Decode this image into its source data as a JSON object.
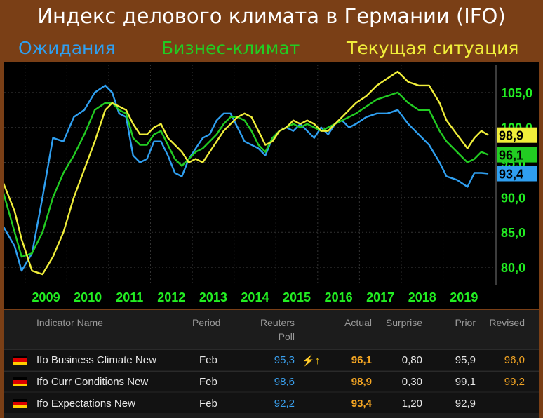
{
  "header": {
    "title": "Индекс делового климата в Германии (IFO)",
    "legend": [
      {
        "label": "Ожидания",
        "color": "#2f9ff0"
      },
      {
        "label": "Бизнес-климат",
        "color": "#22cc22"
      },
      {
        "label": "Текущая ситуация",
        "color": "#f0ee3a"
      }
    ]
  },
  "colors": {
    "expectations": "#2f9ff0",
    "business": "#22cc22",
    "current": "#f0ee3a",
    "axis_text": "#22ee22",
    "year_text": "#22ee22"
  },
  "chart_data": {
    "type": "line",
    "x_tick_labels": [
      "2009",
      "2010",
      "2011",
      "2012",
      "2013",
      "2014",
      "2015",
      "2016",
      "2017",
      "2018",
      "2019"
    ],
    "y_tick_labels": [
      "105,0",
      "100,0",
      "95,0",
      "90,0",
      "85,0",
      "80,0"
    ],
    "y_ticks": [
      105,
      100,
      95,
      90,
      85,
      80
    ],
    "ylim": [
      77.5,
      109
    ],
    "last_value_labels": [
      {
        "series": "Текущая ситуация",
        "text": "98,9",
        "value": 98.9
      },
      {
        "series": "Бизнес-климат",
        "text": "96,1",
        "value": 96.1
      },
      {
        "series": "Ожидания",
        "text": "93,4",
        "value": 93.4
      }
    ],
    "series": [
      {
        "name": "Ожидания",
        "color": "#2f9ff0",
        "points": [
          [
            "2008-06",
            86.5
          ],
          [
            "2008-10",
            83.0
          ],
          [
            "2008-12",
            79.5
          ],
          [
            "2009-03",
            82.0
          ],
          [
            "2009-06",
            90.0
          ],
          [
            "2009-09",
            98.5
          ],
          [
            "2009-12",
            98.0
          ],
          [
            "2010-03",
            101.5
          ],
          [
            "2010-06",
            102.5
          ],
          [
            "2010-09",
            105.0
          ],
          [
            "2010-12",
            106.0
          ],
          [
            "2011-02",
            105.0
          ],
          [
            "2011-04",
            102.0
          ],
          [
            "2011-06",
            101.5
          ],
          [
            "2011-08",
            96.0
          ],
          [
            "2011-10",
            95.0
          ],
          [
            "2011-12",
            95.5
          ],
          [
            "2012-02",
            98.0
          ],
          [
            "2012-04",
            98.0
          ],
          [
            "2012-06",
            96.0
          ],
          [
            "2012-08",
            93.5
          ],
          [
            "2012-10",
            93.0
          ],
          [
            "2012-12",
            95.5
          ],
          [
            "2013-02",
            97.0
          ],
          [
            "2013-04",
            98.5
          ],
          [
            "2013-06",
            99.0
          ],
          [
            "2013-08",
            101.0
          ],
          [
            "2013-10",
            102.0
          ],
          [
            "2013-12",
            102.0
          ],
          [
            "2014-02",
            100.0
          ],
          [
            "2014-04",
            98.0
          ],
          [
            "2014-06",
            97.5
          ],
          [
            "2014-08",
            97.0
          ],
          [
            "2014-10",
            96.0
          ],
          [
            "2014-12",
            98.5
          ],
          [
            "2015-02",
            99.5
          ],
          [
            "2015-04",
            100.0
          ],
          [
            "2015-06",
            99.5
          ],
          [
            "2015-08",
            100.5
          ],
          [
            "2015-10",
            99.5
          ],
          [
            "2015-12",
            98.5
          ],
          [
            "2016-02",
            100.0
          ],
          [
            "2016-04",
            99.0
          ],
          [
            "2016-06",
            100.5
          ],
          [
            "2016-08",
            101.0
          ],
          [
            "2016-10",
            100.0
          ],
          [
            "2016-12",
            100.5
          ],
          [
            "2017-03",
            101.5
          ],
          [
            "2017-06",
            102.0
          ],
          [
            "2017-09",
            102.0
          ],
          [
            "2017-12",
            102.5
          ],
          [
            "2018-03",
            100.5
          ],
          [
            "2018-06",
            99.0
          ],
          [
            "2018-09",
            97.5
          ],
          [
            "2018-12",
            95.0
          ],
          [
            "2019-02",
            93.0
          ],
          [
            "2019-05",
            92.5
          ],
          [
            "2019-08",
            91.5
          ],
          [
            "2019-10",
            93.5
          ],
          [
            "2019-12",
            93.5
          ],
          [
            "2020-02",
            93.4
          ]
        ]
      },
      {
        "name": "Бизнес-климат",
        "color": "#22cc22",
        "points": [
          [
            "2008-06",
            92.0
          ],
          [
            "2008-10",
            85.0
          ],
          [
            "2008-12",
            81.5
          ],
          [
            "2009-03",
            82.0
          ],
          [
            "2009-06",
            85.0
          ],
          [
            "2009-09",
            90.0
          ],
          [
            "2009-12",
            93.5
          ],
          [
            "2010-03",
            96.0
          ],
          [
            "2010-06",
            99.0
          ],
          [
            "2010-09",
            102.5
          ],
          [
            "2010-12",
            103.5
          ],
          [
            "2011-02",
            103.5
          ],
          [
            "2011-04",
            102.5
          ],
          [
            "2011-06",
            102.0
          ],
          [
            "2011-08",
            98.5
          ],
          [
            "2011-10",
            97.5
          ],
          [
            "2011-12",
            97.5
          ],
          [
            "2012-02",
            99.0
          ],
          [
            "2012-04",
            99.5
          ],
          [
            "2012-06",
            97.5
          ],
          [
            "2012-08",
            95.5
          ],
          [
            "2012-10",
            94.5
          ],
          [
            "2012-12",
            95.5
          ],
          [
            "2013-02",
            96.5
          ],
          [
            "2013-04",
            97.0
          ],
          [
            "2013-06",
            98.0
          ],
          [
            "2013-08",
            99.0
          ],
          [
            "2013-10",
            100.5
          ],
          [
            "2013-12",
            101.5
          ],
          [
            "2014-02",
            101.5
          ],
          [
            "2014-04",
            101.0
          ],
          [
            "2014-06",
            99.5
          ],
          [
            "2014-08",
            97.5
          ],
          [
            "2014-10",
            96.5
          ],
          [
            "2014-12",
            98.5
          ],
          [
            "2015-02",
            99.5
          ],
          [
            "2015-04",
            100.0
          ],
          [
            "2015-06",
            100.5
          ],
          [
            "2015-08",
            100.0
          ],
          [
            "2015-10",
            100.5
          ],
          [
            "2015-12",
            100.0
          ],
          [
            "2016-02",
            99.5
          ],
          [
            "2016-04",
            100.0
          ],
          [
            "2016-06",
            100.5
          ],
          [
            "2016-08",
            101.0
          ],
          [
            "2016-10",
            101.5
          ],
          [
            "2016-12",
            102.0
          ],
          [
            "2017-03",
            103.0
          ],
          [
            "2017-06",
            104.0
          ],
          [
            "2017-09",
            104.5
          ],
          [
            "2017-12",
            105.0
          ],
          [
            "2018-03",
            103.5
          ],
          [
            "2018-06",
            102.5
          ],
          [
            "2018-09",
            102.5
          ],
          [
            "2018-12",
            99.5
          ],
          [
            "2019-02",
            98.0
          ],
          [
            "2019-05",
            96.5
          ],
          [
            "2019-08",
            95.0
          ],
          [
            "2019-10",
            95.5
          ],
          [
            "2019-12",
            96.5
          ],
          [
            "2020-02",
            96.1
          ]
        ]
      },
      {
        "name": "Текущая ситуация",
        "color": "#f0ee3a",
        "points": [
          [
            "2008-06",
            93.0
          ],
          [
            "2008-10",
            88.0
          ],
          [
            "2008-12",
            84.0
          ],
          [
            "2009-03",
            79.5
          ],
          [
            "2009-06",
            79.0
          ],
          [
            "2009-09",
            81.5
          ],
          [
            "2009-12",
            85.0
          ],
          [
            "2010-03",
            90.0
          ],
          [
            "2010-06",
            94.0
          ],
          [
            "2010-09",
            98.0
          ],
          [
            "2010-12",
            102.5
          ],
          [
            "2011-02",
            103.5
          ],
          [
            "2011-04",
            103.0
          ],
          [
            "2011-06",
            102.5
          ],
          [
            "2011-08",
            100.5
          ],
          [
            "2011-10",
            99.0
          ],
          [
            "2011-12",
            99.0
          ],
          [
            "2012-02",
            100.0
          ],
          [
            "2012-04",
            100.5
          ],
          [
            "2012-06",
            98.5
          ],
          [
            "2012-08",
            97.5
          ],
          [
            "2012-10",
            96.5
          ],
          [
            "2012-12",
            95.0
          ],
          [
            "2013-02",
            95.5
          ],
          [
            "2013-04",
            95.0
          ],
          [
            "2013-06",
            96.5
          ],
          [
            "2013-08",
            98.0
          ],
          [
            "2013-10",
            99.5
          ],
          [
            "2013-12",
            100.5
          ],
          [
            "2014-02",
            101.5
          ],
          [
            "2014-04",
            102.0
          ],
          [
            "2014-06",
            101.5
          ],
          [
            "2014-08",
            99.5
          ],
          [
            "2014-10",
            97.5
          ],
          [
            "2014-12",
            98.0
          ],
          [
            "2015-02",
            99.5
          ],
          [
            "2015-04",
            100.0
          ],
          [
            "2015-06",
            101.0
          ],
          [
            "2015-08",
            100.5
          ],
          [
            "2015-10",
            101.0
          ],
          [
            "2015-12",
            100.5
          ],
          [
            "2016-02",
            99.5
          ],
          [
            "2016-04",
            99.5
          ],
          [
            "2016-06",
            100.5
          ],
          [
            "2016-08",
            101.5
          ],
          [
            "2016-10",
            102.5
          ],
          [
            "2016-12",
            103.5
          ],
          [
            "2017-03",
            104.5
          ],
          [
            "2017-06",
            106.0
          ],
          [
            "2017-09",
            107.0
          ],
          [
            "2017-12",
            108.0
          ],
          [
            "2018-03",
            106.5
          ],
          [
            "2018-06",
            106.0
          ],
          [
            "2018-09",
            106.0
          ],
          [
            "2018-12",
            103.5
          ],
          [
            "2019-02",
            101.0
          ],
          [
            "2019-05",
            99.0
          ],
          [
            "2019-08",
            97.0
          ],
          [
            "2019-10",
            98.5
          ],
          [
            "2019-12",
            99.5
          ],
          [
            "2020-02",
            98.9
          ]
        ]
      }
    ]
  },
  "table": {
    "headers": {
      "indicator": "Indicator Name",
      "period": "Period",
      "poll": "Reuters Poll",
      "actual": "Actual",
      "surprise": "Surprise",
      "prior": "Prior",
      "revised": "Revised"
    },
    "rows": [
      {
        "flag": "germany-flag",
        "indicator": "Ifo Business Climate New",
        "period": "Feb",
        "poll": "95,3",
        "actual": "96,1",
        "surprise": "0,80",
        "prior": "95,9",
        "revised": "96,0",
        "alert": "⚡↑"
      },
      {
        "flag": "germany-flag",
        "indicator": "Ifo Curr Conditions New",
        "period": "Feb",
        "poll": "98,6",
        "actual": "98,9",
        "surprise": "0,30",
        "prior": "99,1",
        "revised": "99,2",
        "alert": ""
      },
      {
        "flag": "germany-flag",
        "indicator": "Ifo Expectations New",
        "period": "Feb",
        "poll": "92,2",
        "actual": "93,4",
        "surprise": "1,20",
        "prior": "92,9",
        "revised": "",
        "alert": ""
      }
    ],
    "colors": {
      "poll": "#3aa0ee",
      "actual": "#f5a623",
      "revised": "#f5a623",
      "alert": "#f5c518"
    }
  }
}
